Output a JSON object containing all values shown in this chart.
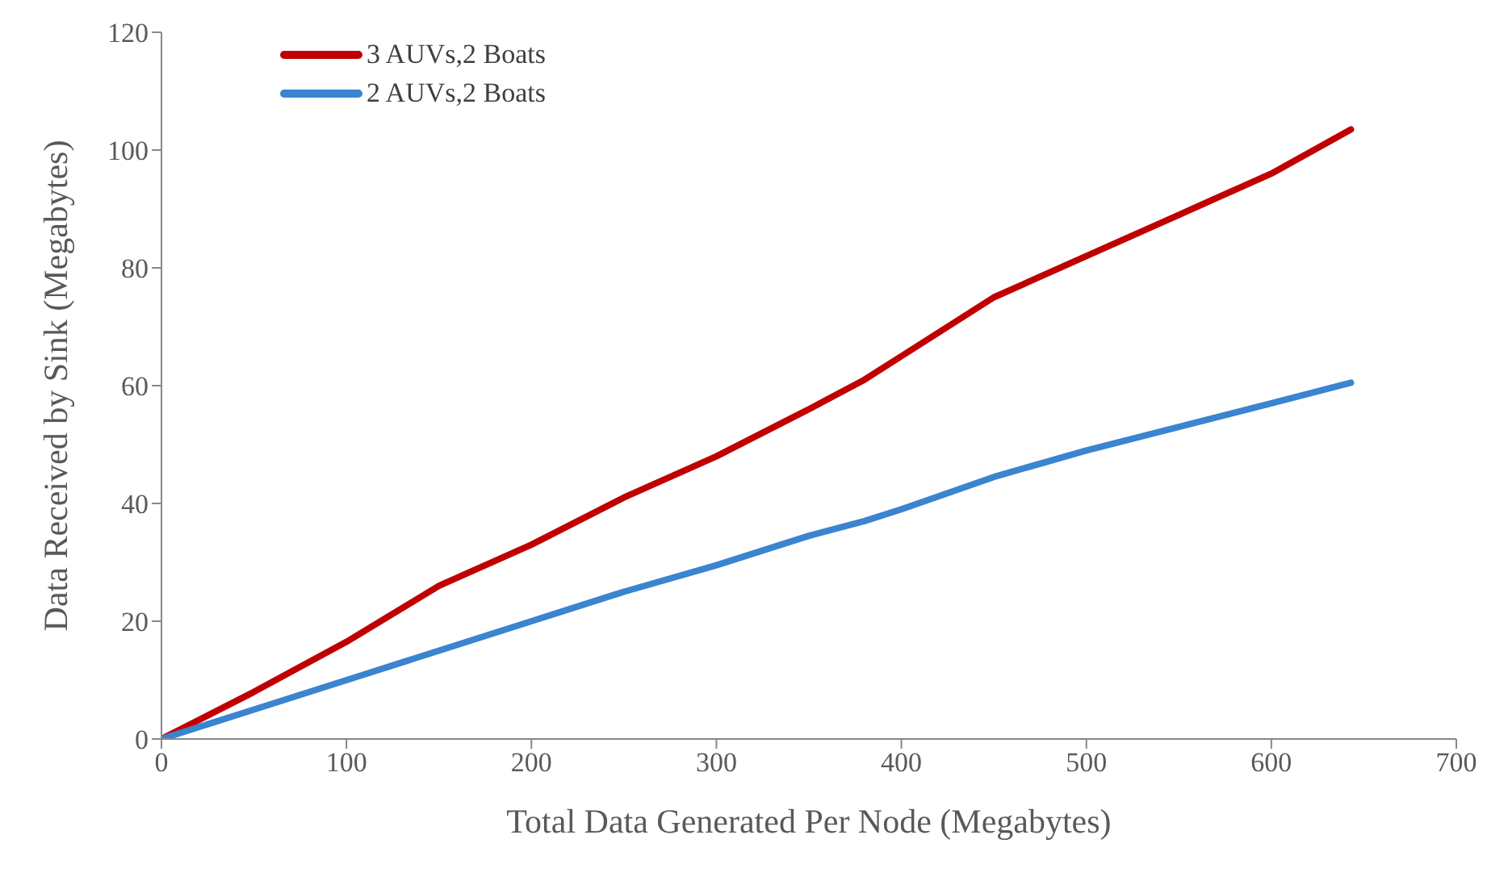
{
  "chart_data": {
    "type": "line",
    "xlabel": "Total Data Generated Per Node (Megabytes)",
    "ylabel": "Data Received by Sink (Megabytes)",
    "x": [
      0,
      50,
      100,
      150,
      200,
      250,
      300,
      350,
      380,
      400,
      450,
      500,
      550,
      600,
      643
    ],
    "series": [
      {
        "name": "3 AUVs,2 Boats",
        "color": "#c00000",
        "values": [
          0,
          8,
          16.5,
          26,
          33,
          41,
          48,
          56,
          61,
          65,
          75,
          82,
          89,
          96,
          103.5
        ]
      },
      {
        "name": "2 AUVs,2 Boats",
        "color": "#3a84d0",
        "values": [
          0,
          5,
          10,
          15,
          20,
          25,
          29.5,
          34.5,
          37,
          39,
          44.5,
          49,
          53,
          57,
          60.5
        ]
      }
    ],
    "xlim": [
      0,
      700
    ],
    "xticks": [
      0,
      100,
      200,
      300,
      400,
      500,
      600,
      700
    ],
    "ylim": [
      0,
      120
    ],
    "yticks": [
      0,
      20,
      40,
      60,
      80,
      100,
      120
    ],
    "grid": false,
    "legend": "top left",
    "marker": "none",
    "line_style": "solid"
  }
}
